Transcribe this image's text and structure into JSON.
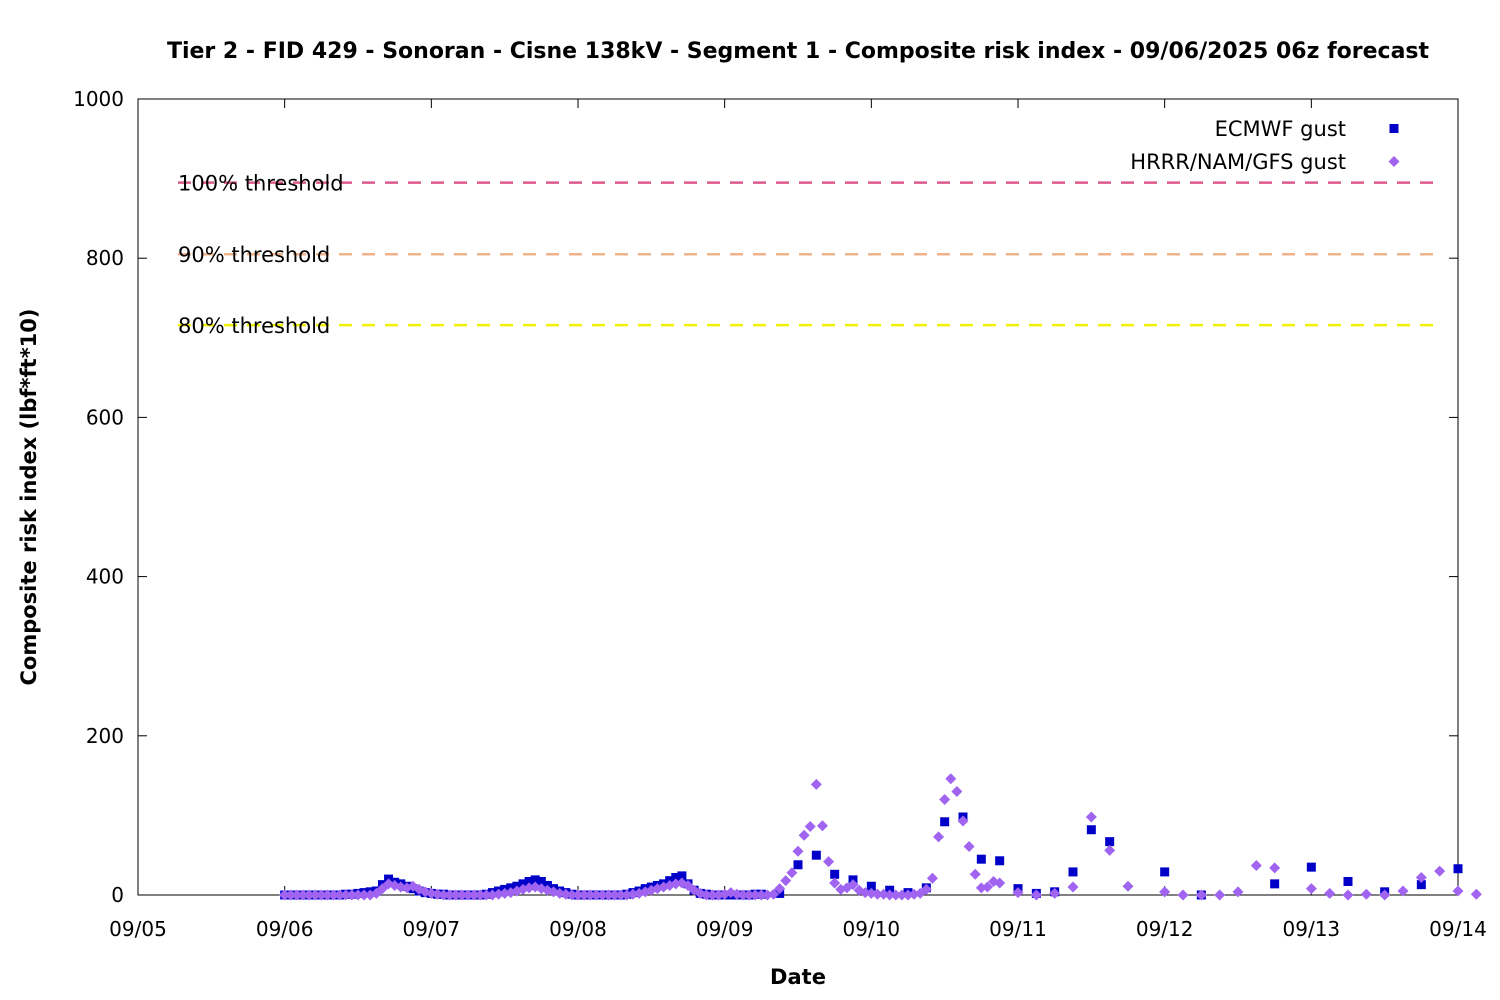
{
  "chart_data": {
    "type": "scatter",
    "title": "Tier 2 - FID 429 - Sonoran - Cisne 138kV - Segment 1 - Composite risk index - 09/06/2025 06z forecast",
    "xlabel": "Date",
    "ylabel": "Composite risk index (lbf*ft*10)",
    "xlim": [
      "09/05",
      "09/14"
    ],
    "ylim": [
      0,
      1000
    ],
    "x_ticks": [
      "09/05",
      "09/06",
      "09/07",
      "09/08",
      "09/09",
      "09/10",
      "09/11",
      "09/12",
      "09/13",
      "09/14"
    ],
    "y_ticks": [
      0,
      200,
      400,
      600,
      800,
      1000
    ],
    "grid": false,
    "legend_position": "top-right",
    "thresholds": [
      {
        "label": "100% threshold",
        "value": 895,
        "color": "#dc5a8c"
      },
      {
        "label": "90% threshold",
        "value": 805,
        "color": "#f0b48c"
      },
      {
        "label": "80% threshold",
        "value": 716,
        "color": "#f0f000"
      }
    ],
    "series": [
      {
        "name": "ECMWF gust",
        "marker": "square",
        "color": "#0000c8",
        "points": [
          [
            "09/06 00z",
            0
          ],
          [
            "09/06 01z",
            0
          ],
          [
            "09/06 02z",
            0
          ],
          [
            "09/06 03z",
            0
          ],
          [
            "09/06 04z",
            0
          ],
          [
            "09/06 05z",
            0
          ],
          [
            "09/06 06z",
            0
          ],
          [
            "09/06 07z",
            0
          ],
          [
            "09/06 08z",
            0
          ],
          [
            "09/06 09z",
            0
          ],
          [
            "09/06 10z",
            1
          ],
          [
            "09/06 11z",
            1
          ],
          [
            "09/06 12z",
            2
          ],
          [
            "09/06 13z",
            3
          ],
          [
            "09/06 14z",
            4
          ],
          [
            "09/06 15z",
            5
          ],
          [
            "09/06 16z",
            13
          ],
          [
            "09/06 17z",
            20
          ],
          [
            "09/06 18z",
            16
          ],
          [
            "09/06 19z",
            14
          ],
          [
            "09/06 20z",
            11
          ],
          [
            "09/06 21z",
            8
          ],
          [
            "09/06 22z",
            5
          ],
          [
            "09/06 23z",
            3
          ],
          [
            "09/07 00z",
            2
          ],
          [
            "09/07 01z",
            1
          ],
          [
            "09/07 02z",
            1
          ],
          [
            "09/07 03z",
            0
          ],
          [
            "09/07 04z",
            0
          ],
          [
            "09/07 05z",
            0
          ],
          [
            "09/07 06z",
            0
          ],
          [
            "09/07 07z",
            0
          ],
          [
            "09/07 08z",
            0
          ],
          [
            "09/07 09z",
            1
          ],
          [
            "09/07 10z",
            3
          ],
          [
            "09/07 11z",
            5
          ],
          [
            "09/07 12z",
            7
          ],
          [
            "09/07 13z",
            9
          ],
          [
            "09/07 14z",
            11
          ],
          [
            "09/07 15z",
            14
          ],
          [
            "09/07 16z",
            17
          ],
          [
            "09/07 17z",
            19
          ],
          [
            "09/07 18z",
            17
          ],
          [
            "09/07 19z",
            12
          ],
          [
            "09/07 20z",
            8
          ],
          [
            "09/07 21z",
            5
          ],
          [
            "09/07 22z",
            3
          ],
          [
            "09/07 23z",
            1
          ],
          [
            "09/08 00z",
            0
          ],
          [
            "09/08 01z",
            0
          ],
          [
            "09/08 02z",
            0
          ],
          [
            "09/08 03z",
            0
          ],
          [
            "09/08 04z",
            0
          ],
          [
            "09/08 05z",
            0
          ],
          [
            "09/08 06z",
            0
          ],
          [
            "09/08 07z",
            0
          ],
          [
            "09/08 08z",
            1
          ],
          [
            "09/08 09z",
            3
          ],
          [
            "09/08 10z",
            5
          ],
          [
            "09/08 11z",
            8
          ],
          [
            "09/08 12z",
            10
          ],
          [
            "09/08 13z",
            12
          ],
          [
            "09/08 14z",
            14
          ],
          [
            "09/08 15z",
            18
          ],
          [
            "09/08 16z",
            22
          ],
          [
            "09/08 17z",
            24
          ],
          [
            "09/08 18z",
            14
          ],
          [
            "09/08 19z",
            6
          ],
          [
            "09/08 20z",
            2
          ],
          [
            "09/08 21z",
            1
          ],
          [
            "09/08 22z",
            0
          ],
          [
            "09/08 23z",
            0
          ],
          [
            "09/09 00z",
            0
          ],
          [
            "09/09 01z",
            0
          ],
          [
            "09/09 02z",
            0
          ],
          [
            "09/09 03z",
            0
          ],
          [
            "09/09 04z",
            0
          ],
          [
            "09/09 05z",
            1
          ],
          [
            "09/09 06z",
            1
          ],
          [
            "09/09 09z",
            2
          ],
          [
            "09/09 12z",
            38
          ],
          [
            "09/09 15z",
            50
          ],
          [
            "09/09 18z",
            26
          ],
          [
            "09/09 21z",
            19
          ],
          [
            "09/10 00z",
            11
          ],
          [
            "09/10 03z",
            6
          ],
          [
            "09/10 06z",
            3
          ],
          [
            "09/10 09z",
            9
          ],
          [
            "09/10 12z",
            92
          ],
          [
            "09/10 15z",
            98
          ],
          [
            "09/10 18z",
            45
          ],
          [
            "09/10 21z",
            43
          ],
          [
            "09/11 00z",
            8
          ],
          [
            "09/11 03z",
            2
          ],
          [
            "09/11 06z",
            4
          ],
          [
            "09/11 09z",
            29
          ],
          [
            "09/11 12z",
            82
          ],
          [
            "09/11 15z",
            67
          ],
          [
            "09/12 00z",
            29
          ],
          [
            "09/12 06z",
            0
          ],
          [
            "09/12 18z",
            14
          ],
          [
            "09/13 00z",
            35
          ],
          [
            "09/13 06z",
            17
          ],
          [
            "09/13 12z",
            4
          ],
          [
            "09/13 18z",
            13
          ],
          [
            "09/14 00z",
            33
          ]
        ]
      },
      {
        "name": "HRRR/NAM/GFS gust",
        "marker": "diamond",
        "color": "#a064f0",
        "points": [
          [
            "09/06 00z",
            0
          ],
          [
            "09/06 01z",
            0
          ],
          [
            "09/06 02z",
            0
          ],
          [
            "09/06 03z",
            0
          ],
          [
            "09/06 04z",
            0
          ],
          [
            "09/06 05z",
            0
          ],
          [
            "09/06 06z",
            0
          ],
          [
            "09/06 07z",
            0
          ],
          [
            "09/06 08z",
            0
          ],
          [
            "09/06 09z",
            0
          ],
          [
            "09/06 10z",
            0
          ],
          [
            "09/06 11z",
            0
          ],
          [
            "09/06 12z",
            0
          ],
          [
            "09/06 13z",
            0
          ],
          [
            "09/06 14z",
            0
          ],
          [
            "09/06 15z",
            2
          ],
          [
            "09/06 16z",
            8
          ],
          [
            "09/06 17z",
            14
          ],
          [
            "09/06 18z",
            12
          ],
          [
            "09/06 19z",
            10
          ],
          [
            "09/06 20z",
            9
          ],
          [
            "09/06 21z",
            11
          ],
          [
            "09/06 22z",
            7
          ],
          [
            "09/06 23z",
            4
          ],
          [
            "09/07 00z",
            2
          ],
          [
            "09/07 01z",
            1
          ],
          [
            "09/07 02z",
            0
          ],
          [
            "09/07 03z",
            0
          ],
          [
            "09/07 04z",
            0
          ],
          [
            "09/07 05z",
            0
          ],
          [
            "09/07 06z",
            0
          ],
          [
            "09/07 07z",
            0
          ],
          [
            "09/07 08z",
            0
          ],
          [
            "09/07 09z",
            0
          ],
          [
            "09/07 10z",
            0
          ],
          [
            "09/07 11z",
            1
          ],
          [
            "09/07 12z",
            2
          ],
          [
            "09/07 13z",
            3
          ],
          [
            "09/07 14z",
            5
          ],
          [
            "09/07 15z",
            7
          ],
          [
            "09/07 16z",
            9
          ],
          [
            "09/07 17z",
            10
          ],
          [
            "09/07 18z",
            8
          ],
          [
            "09/07 19z",
            6
          ],
          [
            "09/07 20z",
            4
          ],
          [
            "09/07 21z",
            2
          ],
          [
            "09/07 22z",
            1
          ],
          [
            "09/07 23z",
            0
          ],
          [
            "09/08 00z",
            0
          ],
          [
            "09/08 01z",
            0
          ],
          [
            "09/08 02z",
            0
          ],
          [
            "09/08 03z",
            0
          ],
          [
            "09/08 04z",
            0
          ],
          [
            "09/08 05z",
            0
          ],
          [
            "09/08 06z",
            0
          ],
          [
            "09/08 07z",
            0
          ],
          [
            "09/08 08z",
            0
          ],
          [
            "09/08 09z",
            1
          ],
          [
            "09/08 10z",
            2
          ],
          [
            "09/08 11z",
            4
          ],
          [
            "09/08 12z",
            6
          ],
          [
            "09/08 13z",
            8
          ],
          [
            "09/08 14z",
            10
          ],
          [
            "09/08 15z",
            12
          ],
          [
            "09/08 16z",
            14
          ],
          [
            "09/08 17z",
            15
          ],
          [
            "09/08 18z",
            12
          ],
          [
            "09/08 19z",
            6
          ],
          [
            "09/08 20z",
            2
          ],
          [
            "09/08 21z",
            0
          ],
          [
            "09/08 22z",
            0
          ],
          [
            "09/08 23z",
            0
          ],
          [
            "09/09 00z",
            1
          ],
          [
            "09/09 01z",
            3
          ],
          [
            "09/09 02z",
            1
          ],
          [
            "09/09 03z",
            0
          ],
          [
            "09/09 04z",
            0
          ],
          [
            "09/09 05z",
            0
          ],
          [
            "09/09 06z",
            0
          ],
          [
            "09/09 07z",
            0
          ],
          [
            "09/09 08z",
            1
          ],
          [
            "09/09 09z",
            8
          ],
          [
            "09/09 10z",
            18
          ],
          [
            "09/09 11z",
            28
          ],
          [
            "09/09 12z",
            55
          ],
          [
            "09/09 13z",
            75
          ],
          [
            "09/09 14z",
            86
          ],
          [
            "09/09 15z",
            139
          ],
          [
            "09/09 16z",
            87
          ],
          [
            "09/09 17z",
            42
          ],
          [
            "09/09 18z",
            15
          ],
          [
            "09/09 19z",
            7
          ],
          [
            "09/09 20z",
            9
          ],
          [
            "09/09 21z",
            13
          ],
          [
            "09/09 22z",
            6
          ],
          [
            "09/09 23z",
            3
          ],
          [
            "09/10 00z",
            2
          ],
          [
            "09/10 01z",
            1
          ],
          [
            "09/10 02z",
            1
          ],
          [
            "09/10 03z",
            0
          ],
          [
            "09/10 04z",
            0
          ],
          [
            "09/10 05z",
            0
          ],
          [
            "09/10 06z",
            0
          ],
          [
            "09/10 07z",
            1
          ],
          [
            "09/10 08z",
            2
          ],
          [
            "09/10 09z",
            7
          ],
          [
            "09/10 10z",
            21
          ],
          [
            "09/10 11z",
            73
          ],
          [
            "09/10 12z",
            120
          ],
          [
            "09/10 13z",
            146
          ],
          [
            "09/10 14z",
            130
          ],
          [
            "09/10 15z",
            93
          ],
          [
            "09/10 16z",
            61
          ],
          [
            "09/10 17z",
            26
          ],
          [
            "09/10 18z",
            9
          ],
          [
            "09/10 19z",
            10
          ],
          [
            "09/10 20z",
            17
          ],
          [
            "09/10 21z",
            15
          ],
          [
            "09/11 00z",
            3
          ],
          [
            "09/11 03z",
            0
          ],
          [
            "09/11 06z",
            2
          ],
          [
            "09/11 09z",
            10
          ],
          [
            "09/11 12z",
            98
          ],
          [
            "09/11 15z",
            56
          ],
          [
            "09/11 18z",
            11
          ],
          [
            "09/12 00z",
            4
          ],
          [
            "09/12 03z",
            0
          ],
          [
            "09/12 06z",
            0
          ],
          [
            "09/12 09z",
            0
          ],
          [
            "09/12 12z",
            4
          ],
          [
            "09/12 15z",
            37
          ],
          [
            "09/12 18z",
            34
          ],
          [
            "09/13 00z",
            8
          ],
          [
            "09/13 03z",
            2
          ],
          [
            "09/13 06z",
            0
          ],
          [
            "09/13 09z",
            1
          ],
          [
            "09/13 12z",
            0
          ],
          [
            "09/13 15z",
            5
          ],
          [
            "09/13 18z",
            22
          ],
          [
            "09/13 21z",
            30
          ],
          [
            "09/14 00z",
            5
          ],
          [
            "09/14 03z",
            1
          ]
        ]
      }
    ]
  }
}
